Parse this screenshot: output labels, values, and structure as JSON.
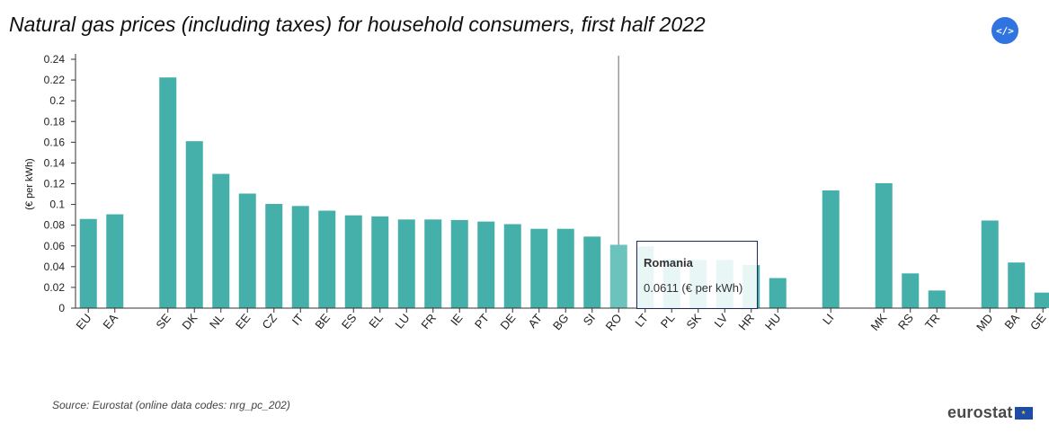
{
  "title": "Natural gas prices (including taxes) for household consumers, first half 2022",
  "embed_button": {
    "label": "</>",
    "icon": "code-embed-icon"
  },
  "source": "Source: Eurostat (online data codes: nrg_pc_202)",
  "logo": {
    "text": "eurostat",
    "flag_icon": "eu-flag-icon",
    "flag_color": "#1d4da8"
  },
  "tooltip": {
    "name": "Romania",
    "value": "0.0611 (€ per kWh)"
  },
  "colors": {
    "bar": "#45b0a9",
    "bar_hover": "#6cc2bc",
    "bar_faded": "#c8e9e6",
    "crosshair": "#999999",
    "axis": "#333333"
  },
  "chart_data": {
    "type": "bar",
    "ylabel": "(€ per kWh)",
    "ylim": [
      0,
      0.24
    ],
    "yticks": [
      "0",
      "0.02",
      "0.04",
      "0.06",
      "0.08",
      "0.1",
      "0.12",
      "0.14",
      "0.16",
      "0.18",
      "0.2",
      "0.22",
      "0.24"
    ],
    "categories": [
      "EU",
      "EA",
      "",
      "SE",
      "DK",
      "NL",
      "EE",
      "CZ",
      "IT",
      "BE",
      "ES",
      "EL",
      "LU",
      "FR",
      "IE",
      "PT",
      "DE",
      "AT",
      "BG",
      "SI",
      "RO",
      "LT",
      "PL",
      "SK",
      "LV",
      "HR",
      "HU",
      "",
      "LI",
      "",
      "MK",
      "RS",
      "TR",
      "",
      "MD",
      "BA",
      "GE"
    ],
    "values": [
      0.086,
      0.0905,
      null,
      0.2225,
      0.161,
      0.1295,
      0.1105,
      0.1005,
      0.0985,
      0.094,
      0.0895,
      0.0885,
      0.0855,
      0.0855,
      0.085,
      0.0835,
      0.081,
      0.0765,
      0.0765,
      0.069,
      0.0611,
      0.0595,
      0.0475,
      0.0465,
      0.0465,
      0.0415,
      0.029,
      null,
      0.1135,
      null,
      0.1205,
      0.0335,
      0.017,
      null,
      0.0845,
      0.044,
      0.015
    ],
    "highlighted": "RO",
    "faded": [
      "LT",
      "PL",
      "SK",
      "LV",
      "HR"
    ],
    "grid": false
  }
}
